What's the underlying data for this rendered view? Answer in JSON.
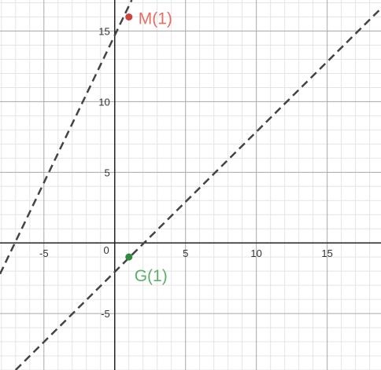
{
  "chart_data": {
    "type": "line",
    "xlim": [
      -8.1,
      18.8
    ],
    "ylim": [
      -9.0,
      17.2
    ],
    "grid": {
      "minor_step": 1,
      "major_step": 5,
      "visible": true
    },
    "x_ticks": [
      {
        "value": -5,
        "label": "-5"
      },
      {
        "value": 5,
        "label": "5"
      },
      {
        "value": 10,
        "label": "10"
      },
      {
        "value": 15,
        "label": "15"
      }
    ],
    "y_ticks": [
      {
        "value": -5,
        "label": "-5"
      },
      {
        "value": 5,
        "label": "5"
      },
      {
        "value": 10,
        "label": "10"
      },
      {
        "value": 15,
        "label": "15"
      }
    ],
    "origin_label": "0",
    "lines": [
      {
        "x1": -8.1,
        "y1": -2.2,
        "x2": 1.2,
        "y2": 17.2,
        "style": "dashed",
        "color": "#444444"
      },
      {
        "x1": -7.0,
        "y1": -9.0,
        "x2": 18.8,
        "y2": 16.6,
        "style": "dashed",
        "color": "#444444"
      }
    ],
    "points": [
      {
        "x": 1,
        "y": 16,
        "label": "M(1)",
        "color": "#c74440",
        "label_color": "#e07068"
      },
      {
        "x": 1,
        "y": -1,
        "label": "G(1)",
        "color": "#2d8a3e",
        "label_color": "#5fae6a"
      }
    ],
    "colors": {
      "minor_grid": "#e4e4e4",
      "major_grid": "#a8a8a8",
      "axis": "#222222"
    }
  }
}
